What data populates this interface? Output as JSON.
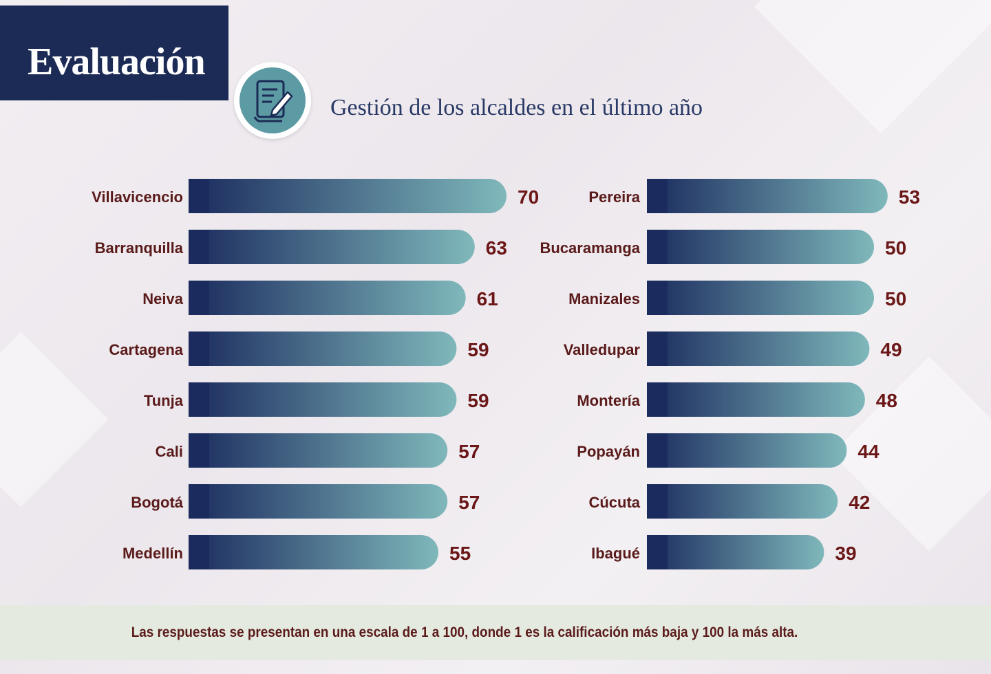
{
  "header": {
    "title": "Evaluación",
    "subtitle": "Gestión de los alcaldes en el último año",
    "icon": "document-pen-icon"
  },
  "footer": {
    "note": "Las respuestas se presentan en una escala de 1 a 100, donde 1 es la calificación más baja y 100 la más alta."
  },
  "colors": {
    "bar_start": "#1b2b5e",
    "bar_end": "#7fb8bb",
    "value_text": "#6b1717",
    "label_text": "#5a1a1a"
  },
  "chart_data": [
    {
      "type": "bar",
      "orientation": "horizontal",
      "categories": [
        "Villavicencio",
        "Barranquilla",
        "Neiva",
        "Cartagena",
        "Tunja",
        "Cali",
        "Bogotá",
        "Medellín"
      ],
      "values": [
        70,
        63,
        61,
        59,
        59,
        57,
        57,
        55
      ]
    },
    {
      "type": "bar",
      "orientation": "horizontal",
      "categories": [
        "Pereira",
        "Bucaramanga",
        "Manizales",
        "Valledupar",
        "Montería",
        "Popayán",
        "Cúcuta",
        "Ibagué"
      ],
      "values": [
        53,
        50,
        50,
        49,
        48,
        44,
        42,
        39
      ]
    }
  ]
}
